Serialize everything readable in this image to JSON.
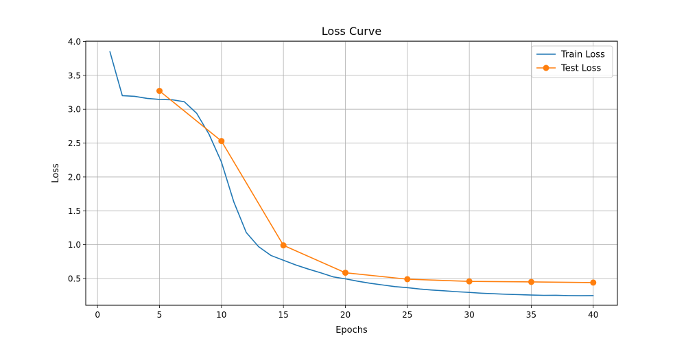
{
  "chart_data": {
    "type": "line",
    "title": "Loss Curve",
    "xlabel": "Epochs",
    "ylabel": "Loss",
    "xlim": [
      -0.95,
      41.95
    ],
    "ylim": [
      0.105,
      4.005
    ],
    "xticks": [
      0,
      5,
      10,
      15,
      20,
      25,
      30,
      35,
      40
    ],
    "yticks": [
      0.5,
      1.0,
      1.5,
      2.0,
      2.5,
      3.0,
      3.5,
      4.0
    ],
    "grid": true,
    "legend_position": "top-right",
    "series": [
      {
        "name": "Train Loss",
        "color": "#1f77b4",
        "marker": "none",
        "x": [
          1,
          2,
          3,
          4,
          5,
          6,
          7,
          8,
          9,
          10,
          11,
          12,
          13,
          14,
          15,
          16,
          17,
          18,
          19,
          20,
          21,
          22,
          23,
          24,
          25,
          26,
          27,
          28,
          29,
          30,
          31,
          32,
          33,
          34,
          35,
          36,
          37,
          38,
          39,
          40
        ],
        "y": [
          3.85,
          3.2,
          3.19,
          3.16,
          3.145,
          3.14,
          3.11,
          2.94,
          2.63,
          2.22,
          1.63,
          1.18,
          0.97,
          0.84,
          0.77,
          0.7,
          0.64,
          0.585,
          0.525,
          0.495,
          0.46,
          0.43,
          0.405,
          0.38,
          0.365,
          0.345,
          0.33,
          0.318,
          0.305,
          0.295,
          0.283,
          0.275,
          0.267,
          0.262,
          0.256,
          0.252,
          0.253,
          0.248,
          0.246,
          0.247
        ]
      },
      {
        "name": "Test Loss",
        "color": "#ff7f0e",
        "marker": "circle",
        "x": [
          5,
          10,
          15,
          20,
          25,
          30,
          35,
          40
        ],
        "y": [
          3.27,
          2.53,
          0.99,
          0.585,
          0.49,
          0.458,
          0.45,
          0.44
        ]
      }
    ]
  }
}
